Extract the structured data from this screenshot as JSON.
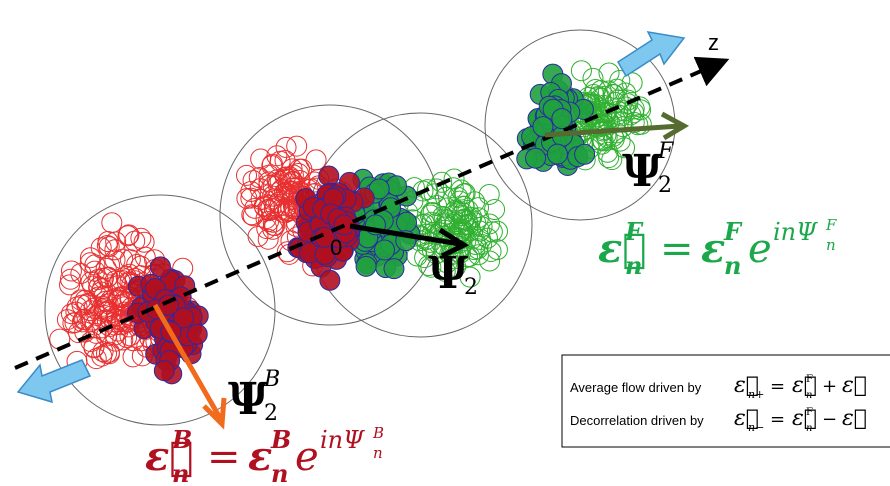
{
  "axis_label": "z",
  "origin_label": "0",
  "psi_forward": {
    "symbol": "Ψ",
    "sub": "2",
    "sup": "F"
  },
  "psi_mid": {
    "symbol": "Ψ",
    "sub": "2"
  },
  "psi_backward": {
    "symbol": "Ψ",
    "sub": "2",
    "sup": "B"
  },
  "formula_forward": {
    "vector": "ε⃗",
    "sub": "n",
    "sup": "F",
    "equals": "=",
    "magnitude": "ε",
    "mag_sub": "n",
    "mag_sup": "F",
    "exp_base": "e",
    "exponent": "inΨ",
    "exp_sub": "n",
    "exp_sup": "F"
  },
  "formula_backward": {
    "vector": "ε⃗",
    "sub": "n",
    "sup": "B",
    "equals": "=",
    "magnitude": "ε",
    "mag_sub": "n",
    "mag_sup": "B",
    "exp_base": "e",
    "exponent": "inΨ",
    "exp_sub": "n",
    "exp_sup": "B"
  },
  "legend": {
    "rows": [
      {
        "text": "Average flow driven by",
        "symbol": "ε⃗",
        "sub": "n+",
        "equals": "=",
        "term1": "ε⃗",
        "term1_sub": "n",
        "term1_sup": "F",
        "op": "+",
        "term2": "ε⃗"
      },
      {
        "text": "Decorrelation driven by",
        "symbol": "ε⃗",
        "sub": "n−",
        "equals": "=",
        "term1": "ε⃗",
        "term1_sub": "n",
        "term1_sup": "F",
        "op": "−",
        "term2": "ε⃗"
      }
    ]
  }
}
